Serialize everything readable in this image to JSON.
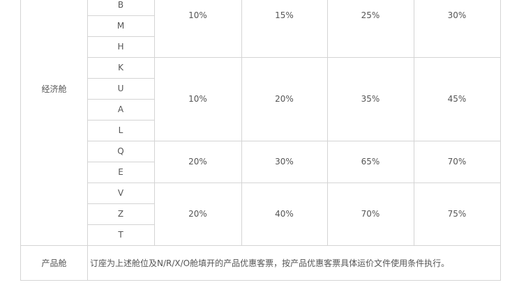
{
  "table": {
    "economy_label": "经济舱",
    "groups": [
      {
        "classes": [
          "B",
          "M",
          "H"
        ],
        "values": [
          "10%",
          "15%",
          "25%",
          "30%"
        ]
      },
      {
        "classes": [
          "K",
          "U",
          "A",
          "L"
        ],
        "values": [
          "10%",
          "20%",
          "35%",
          "45%"
        ]
      },
      {
        "classes": [
          "Q",
          "E"
        ],
        "values": [
          "20%",
          "30%",
          "65%",
          "70%"
        ]
      },
      {
        "classes": [
          "V",
          "Z",
          "T"
        ],
        "values": [
          "20%",
          "40%",
          "70%",
          "75%"
        ]
      }
    ],
    "product_label": "产品舱",
    "product_text": "订座为上述舱位及N/R/X/O舱填开的产品优惠客票，按产品优惠客票具体运价文件使用条件执行。"
  }
}
